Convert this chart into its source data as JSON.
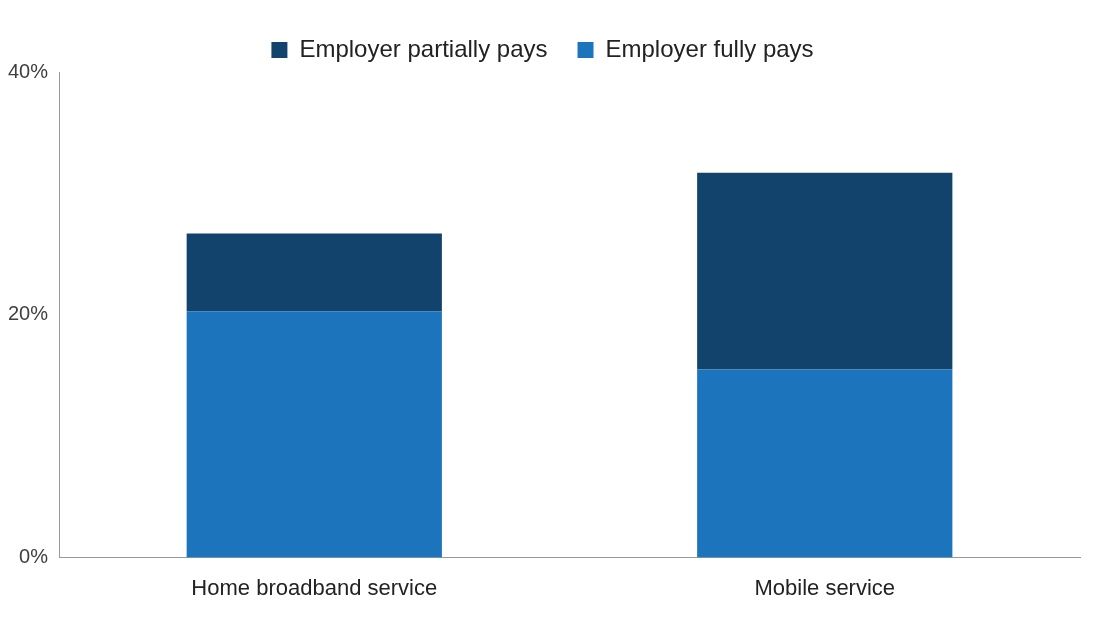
{
  "chart_data": {
    "type": "bar",
    "stacked": true,
    "categories": [
      "Home broadband service",
      "Mobile service"
    ],
    "series": [
      {
        "name": "Employer fully pays",
        "color": "#1c75bc",
        "values": [
          20.3,
          15.5
        ]
      },
      {
        "name": "Employer partially pays",
        "color": "#12436d",
        "values": [
          6.4,
          16.2
        ]
      }
    ],
    "ylim": [
      0,
      40
    ],
    "yticks": [
      {
        "value": 0,
        "label": "0%"
      },
      {
        "value": 20,
        "label": "20%"
      },
      {
        "value": 40,
        "label": "40%"
      }
    ],
    "grid": false,
    "legend": "top"
  }
}
